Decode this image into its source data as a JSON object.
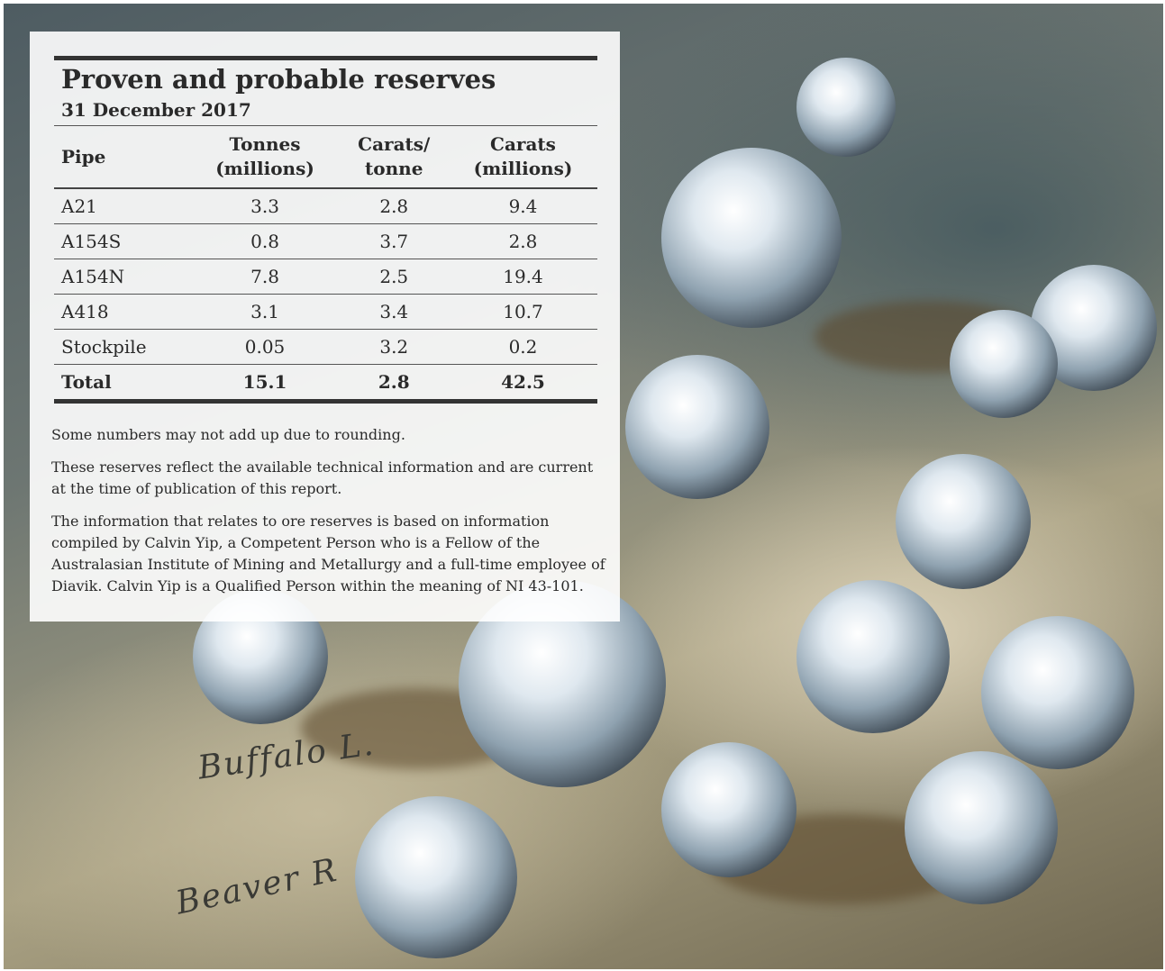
{
  "header": {
    "title": "Proven and probable reserves",
    "subtitle": "31 December 2017"
  },
  "table": {
    "columns": [
      "Pipe",
      "Tonnes\n(millions)",
      "Carats/\ntonne",
      "Carats\n(millions)"
    ],
    "rows": [
      [
        "A21",
        "3.3",
        "2.8",
        "9.4"
      ],
      [
        "A154S",
        "0.8",
        "3.7",
        "2.8"
      ],
      [
        "A154N",
        "7.8",
        "2.5",
        "19.4"
      ],
      [
        "A418",
        "3.1",
        "3.4",
        "10.7"
      ],
      [
        "Stockpile",
        "0.05",
        "3.2",
        "0.2"
      ]
    ],
    "total": [
      "Total",
      "15.1",
      "2.8",
      "42.5"
    ]
  },
  "notes": [
    "Some numbers may not add up due to rounding.",
    "These reserves reflect the available technical information and are current at the time of publication of this report.",
    "The information that relates to ore reserves is based on information compiled by Calvin Yip, a Competent Person who is a Fellow of the Australasian Institute of Mining and Metallurgy and a full-time employee of Diavik. Calvin Yip is a Qualified Person within the meaning of NI 43-101."
  ],
  "background_labels": [
    "Buffalo L.",
    "Beaver R"
  ]
}
